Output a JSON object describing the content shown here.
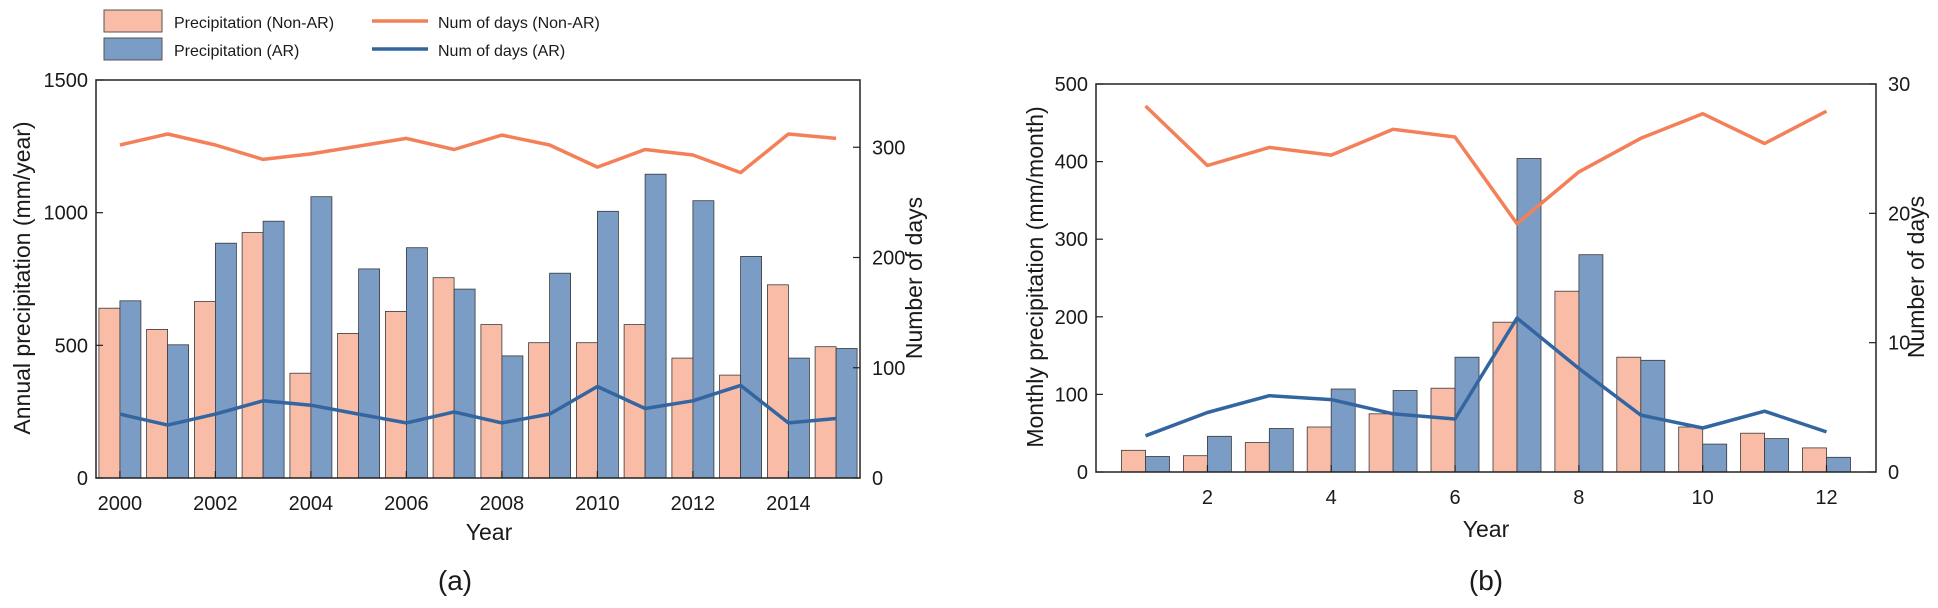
{
  "legend": {
    "items": [
      {
        "label": "Precipitation (Non-AR)",
        "kind": "bar",
        "color": "#f9bca7"
      },
      {
        "label": "Precipitation (AR)",
        "kind": "bar",
        "color": "#7b9cc4"
      },
      {
        "label": "Num of days (Non-AR)",
        "kind": "line",
        "color": "#f4805a"
      },
      {
        "label": "Num of days (AR)",
        "kind": "line",
        "color": "#3366a0"
      }
    ]
  },
  "colors": {
    "bar_non_ar": "#f9bca7",
    "bar_ar": "#7b9cc4",
    "line_non_ar": "#f4805a",
    "line_ar": "#3366a0"
  },
  "chart_data": [
    {
      "type": "bar",
      "panel_label": "(a)",
      "xlabel": "Year",
      "ylabel": "Annual precipitation (mm/year)",
      "y2label": "Number of days",
      "x": [
        2000,
        2001,
        2002,
        2003,
        2004,
        2005,
        2006,
        2007,
        2008,
        2009,
        2010,
        2011,
        2012,
        2013,
        2014,
        2015
      ],
      "xticks": [
        2000,
        2002,
        2004,
        2006,
        2008,
        2010,
        2012,
        2014
      ],
      "xlim": [
        1999.5,
        2015.5
      ],
      "ylim": [
        0,
        1500
      ],
      "yticks": [
        0,
        500,
        1000,
        1500
      ],
      "y2lim": [
        0,
        361
      ],
      "y2ticks": [
        0,
        100,
        200,
        300
      ],
      "series": [
        {
          "name": "Precipitation (Non-AR)",
          "kind": "bar",
          "axis": "left",
          "values": [
            640,
            560,
            665,
            925,
            395,
            545,
            628,
            755,
            578,
            510,
            510,
            578,
            452,
            388,
            728,
            495
          ]
        },
        {
          "name": "Precipitation (AR)",
          "kind": "bar",
          "axis": "left",
          "values": [
            668,
            502,
            885,
            968,
            1060,
            788,
            868,
            712,
            460,
            772,
            1005,
            1145,
            1045,
            835,
            452,
            488
          ]
        },
        {
          "name": "Num of days (Non-AR)",
          "kind": "line",
          "axis": "right",
          "values": [
            302,
            312,
            302,
            289,
            294,
            301,
            308,
            298,
            311,
            302,
            282,
            298,
            293,
            277,
            312,
            308
          ]
        },
        {
          "name": "Num of days (AR)",
          "kind": "line",
          "axis": "right",
          "values": [
            58,
            48,
            58,
            70,
            66,
            58,
            50,
            60,
            50,
            58,
            83,
            63,
            70,
            84,
            50,
            54
          ]
        }
      ]
    },
    {
      "type": "bar",
      "panel_label": "(b)",
      "xlabel": "Year",
      "ylabel": "Monthly precipitation (mm/month)",
      "y2label": "Number of days",
      "x": [
        1,
        2,
        3,
        4,
        5,
        6,
        7,
        8,
        9,
        10,
        11,
        12
      ],
      "xticks": [
        2,
        4,
        6,
        8,
        10,
        12
      ],
      "xlim": [
        0.2,
        12.8
      ],
      "ylim": [
        0,
        500
      ],
      "yticks": [
        0,
        100,
        200,
        300,
        400,
        500
      ],
      "y2lim": [
        0,
        30
      ],
      "y2ticks": [
        0,
        10,
        20,
        30
      ],
      "series": [
        {
          "name": "Precipitation (Non-AR)",
          "kind": "bar",
          "axis": "left",
          "values": [
            28,
            21,
            38,
            58,
            75,
            108,
            193,
            233,
            148,
            58,
            50,
            31
          ]
        },
        {
          "name": "Precipitation (AR)",
          "kind": "bar",
          "axis": "left",
          "values": [
            20,
            46,
            56,
            107,
            105,
            148,
            404,
            280,
            144,
            36,
            43,
            19
          ]
        },
        {
          "name": "Num of days (Non-AR)",
          "kind": "line",
          "axis": "right",
          "values": [
            28.3,
            23.7,
            25.1,
            24.5,
            26.5,
            25.9,
            19.2,
            23.2,
            25.8,
            27.7,
            25.4,
            27.9
          ]
        },
        {
          "name": "Num of days (AR)",
          "kind": "line",
          "axis": "right",
          "values": [
            2.8,
            4.6,
            5.9,
            5.6,
            4.5,
            4.1,
            11.9,
            8.0,
            4.4,
            3.4,
            4.7,
            3.1
          ]
        }
      ]
    }
  ]
}
